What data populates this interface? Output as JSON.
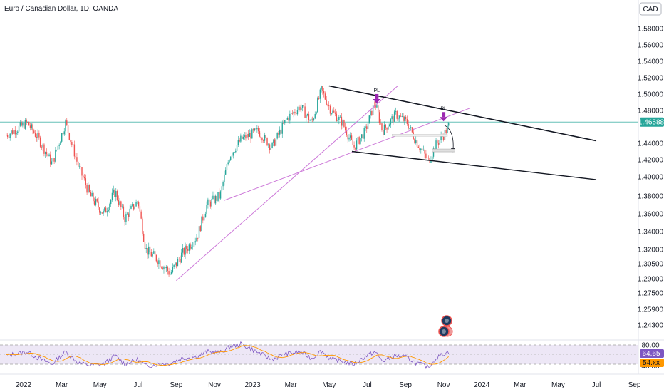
{
  "header": {
    "symbol_title": "Euro / Canadian Dollar, 1D, OANDA",
    "currency_label": "CAD"
  },
  "colors": {
    "up": "#26a69a",
    "down": "#ef5350",
    "trendline": "#cc77d8",
    "channel": "#131722",
    "pivot_arrow": "#9c27b0",
    "price_line": "#26a69a",
    "rsi_line": "#7e57c2",
    "rsi_ma": "#ff9800",
    "rsi_band": "#ede7f6"
  },
  "chart_data": {
    "type": "candlestick",
    "title": "Euro / Canadian Dollar, 1D, OANDA",
    "y_axis": {
      "ticks": [
        "1.58000",
        "1.56000",
        "1.54000",
        "1.52000",
        "1.50000",
        "1.48000",
        "1.44000",
        "1.42000",
        "1.40000",
        "1.38000",
        "1.36000",
        "1.34000",
        "1.32000",
        "1.30500",
        "1.29000",
        "1.27500",
        "1.25900",
        "1.24300"
      ],
      "tick_values": [
        1.58,
        1.56,
        1.54,
        1.52,
        1.5,
        1.48,
        1.44,
        1.42,
        1.4,
        1.38,
        1.36,
        1.34,
        1.32,
        1.305,
        1.29,
        1.275,
        1.259,
        1.243
      ],
      "current_price": "1.46588",
      "current_value": 1.46588
    },
    "x_axis": {
      "ticks": [
        "2022",
        "Mar",
        "May",
        "Jul",
        "Sep",
        "Nov",
        "2023",
        "Mar",
        "May",
        "Jul",
        "Sep",
        "Nov",
        "2024",
        "Mar",
        "May",
        "Jul",
        "Sep"
      ],
      "tick_months": [
        0,
        2,
        4,
        6,
        8,
        10,
        12,
        14,
        16,
        18,
        20,
        22,
        24,
        26,
        28,
        30,
        32
      ]
    },
    "price_path": [
      [
        -0.9,
        1.45
      ],
      [
        0.2,
        1.465
      ],
      [
        0.8,
        1.445
      ],
      [
        1.5,
        1.415
      ],
      [
        2.2,
        1.465
      ],
      [
        2.9,
        1.41
      ],
      [
        3.5,
        1.38
      ],
      [
        4.2,
        1.36
      ],
      [
        4.8,
        1.385
      ],
      [
        5.3,
        1.355
      ],
      [
        6.0,
        1.375
      ],
      [
        6.4,
        1.32
      ],
      [
        7.0,
        1.31
      ],
      [
        7.7,
        1.295
      ],
      [
        8.3,
        1.315
      ],
      [
        9.1,
        1.335
      ],
      [
        9.6,
        1.37
      ],
      [
        10.3,
        1.38
      ],
      [
        10.8,
        1.425
      ],
      [
        11.4,
        1.445
      ],
      [
        12.3,
        1.455
      ],
      [
        13.0,
        1.435
      ],
      [
        13.8,
        1.47
      ],
      [
        14.5,
        1.485
      ],
      [
        15.1,
        1.465
      ],
      [
        15.6,
        1.505
      ],
      [
        16.1,
        1.48
      ],
      [
        16.7,
        1.465
      ],
      [
        17.3,
        1.435
      ],
      [
        17.9,
        1.455
      ],
      [
        18.4,
        1.49
      ],
      [
        18.8,
        1.455
      ],
      [
        19.5,
        1.475
      ],
      [
        20.1,
        1.465
      ],
      [
        20.5,
        1.445
      ],
      [
        20.9,
        1.43
      ],
      [
        21.2,
        1.418
      ],
      [
        21.6,
        1.438
      ],
      [
        22.0,
        1.45
      ],
      [
        22.3,
        1.462
      ]
    ],
    "annotations": {
      "pivot_labels": [
        "PL",
        "PL"
      ],
      "pivots": [
        [
          18.5,
          1.487
        ],
        [
          22.0,
          1.465
        ]
      ],
      "upper_channel": [
        [
          16.0,
          1.51
        ],
        [
          30.0,
          1.443
        ]
      ],
      "lower_channel": [
        [
          17.2,
          1.43
        ],
        [
          30.0,
          1.397
        ]
      ],
      "trendline_1": [
        [
          8.0,
          1.288
        ],
        [
          19.6,
          1.51
        ]
      ],
      "trendline_2": [
        [
          10.5,
          1.375
        ],
        [
          23.4,
          1.483
        ]
      ]
    },
    "rsi": {
      "levels": [
        "80.00",
        "40.00"
      ],
      "current_value": "64.65",
      "ma_value": "54.xx",
      "path": [
        [
          -0.9,
          58
        ],
        [
          0.2,
          66
        ],
        [
          0.8,
          52
        ],
        [
          1.5,
          40
        ],
        [
          2.2,
          66
        ],
        [
          2.9,
          42
        ],
        [
          3.5,
          38
        ],
        [
          4.2,
          40
        ],
        [
          4.8,
          58
        ],
        [
          5.3,
          40
        ],
        [
          6.0,
          50
        ],
        [
          6.4,
          36
        ],
        [
          7.0,
          40
        ],
        [
          7.7,
          42
        ],
        [
          8.3,
          52
        ],
        [
          9.1,
          56
        ],
        [
          9.6,
          66
        ],
        [
          10.3,
          64
        ],
        [
          10.8,
          76
        ],
        [
          11.4,
          82
        ],
        [
          12.3,
          64
        ],
        [
          13.0,
          50
        ],
        [
          13.8,
          62
        ],
        [
          14.5,
          66
        ],
        [
          15.1,
          52
        ],
        [
          15.6,
          68
        ],
        [
          16.1,
          50
        ],
        [
          16.7,
          46
        ],
        [
          17.3,
          40
        ],
        [
          17.9,
          56
        ],
        [
          18.4,
          66
        ],
        [
          18.8,
          46
        ],
        [
          19.5,
          58
        ],
        [
          20.1,
          54
        ],
        [
          20.5,
          44
        ],
        [
          20.9,
          38
        ],
        [
          21.2,
          34
        ],
        [
          21.6,
          52
        ],
        [
          22.0,
          62
        ],
        [
          22.3,
          66
        ]
      ]
    }
  }
}
